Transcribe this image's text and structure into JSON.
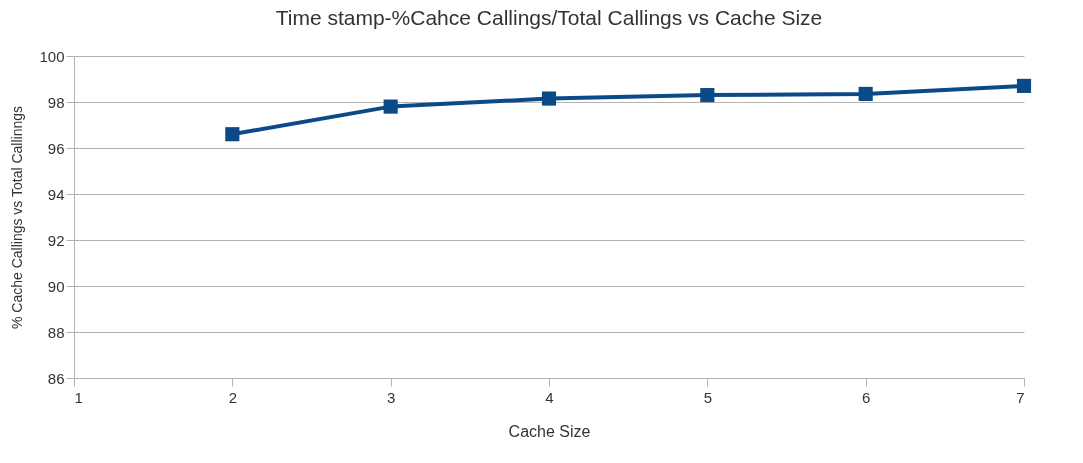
{
  "chart_data": {
    "type": "line",
    "title": "Time stamp-%Cahce Callings/Total Callings vs Cache Size",
    "xlabel": "Cache Size",
    "ylabel": "% Cache Callings vs Total Callinngs",
    "x": [
      2,
      3,
      4,
      5,
      6,
      7
    ],
    "series": [
      {
        "color": "#0b4a87",
        "values": [
          96.6,
          97.8,
          98.15,
          98.3,
          98.35,
          98.7
        ]
      }
    ],
    "xlim": [
      1,
      7
    ],
    "xticks": [
      1,
      2,
      3,
      4,
      5,
      6,
      7
    ],
    "ylim": [
      86,
      100
    ],
    "yticks": [
      86,
      88,
      90,
      92,
      94,
      96,
      98,
      100
    ],
    "grid": "y",
    "marker": "square",
    "line_style": "solid"
  }
}
